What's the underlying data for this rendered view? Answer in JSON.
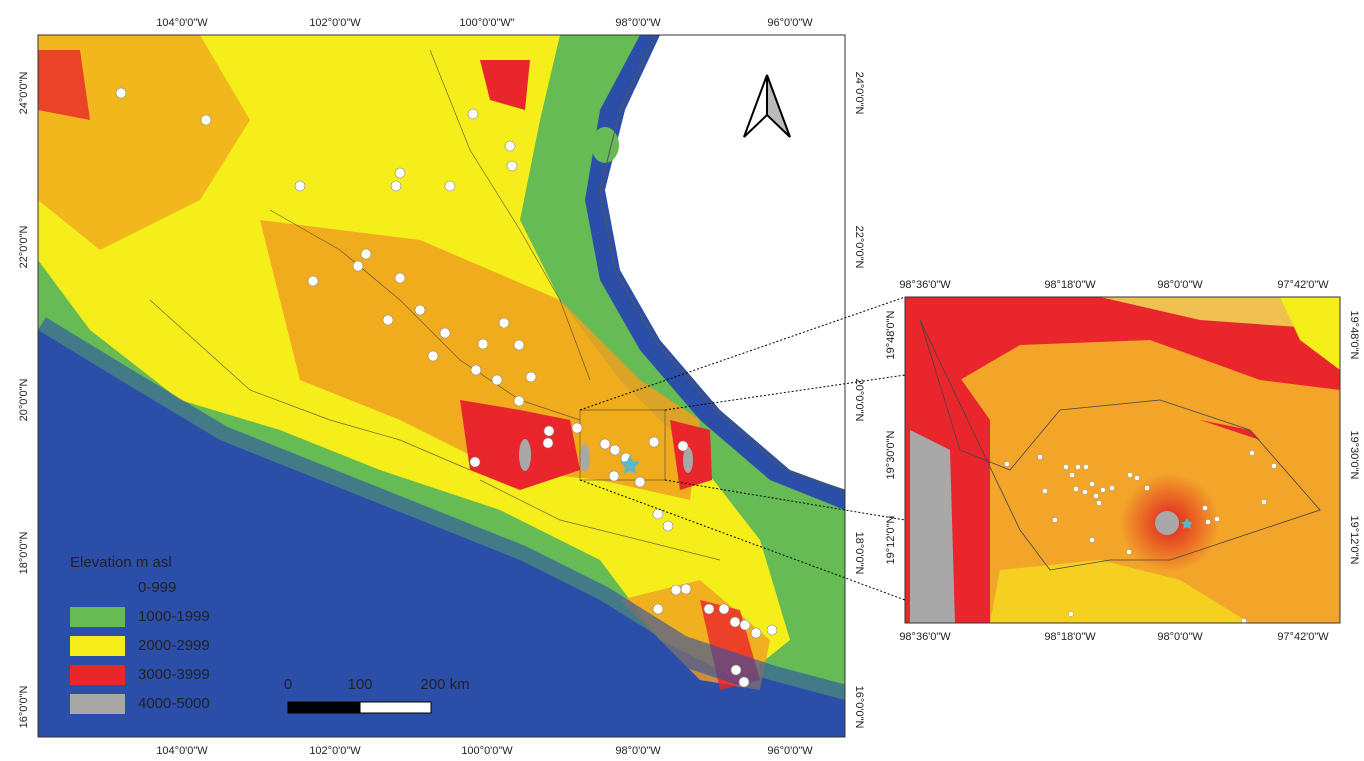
{
  "main_map": {
    "top_labels": [
      "104°0'0\"W",
      "102°0'0\"W",
      "100°0'0\"W\"",
      "98°0'0\"W",
      "96°0'0\"W"
    ],
    "bottom_labels": [
      "104°0'0\"W",
      "102°0'0\"W",
      "100°0'0\"W",
      "98°0'0\"W",
      "96°0'0\"W"
    ],
    "left_labels": [
      "24°0'0\"N",
      "22°0'0\"N",
      "20°0'0\"N",
      "18°0'0\"N",
      "16°0'0\"N"
    ],
    "right_labels": [
      "24°0'0\"N",
      "22°0'0\"N",
      "20°0'0\"N",
      "18°0'0\"N",
      "16°0'0\"N"
    ]
  },
  "legend": {
    "title": "Elevation m asl",
    "items": [
      {
        "label": "0-999",
        "color": "#2b4ea8"
      },
      {
        "label": "1000-1999",
        "color": "#66bb55"
      },
      {
        "label": "2000-2999",
        "color": "#f5ee1a"
      },
      {
        "label": "3000-3999",
        "color": "#e8262b"
      },
      {
        "label": "4000-5000",
        "color": "#a8a8a8"
      }
    ]
  },
  "scale_bar": {
    "labels": [
      "0",
      "100",
      "200 km"
    ]
  },
  "inset_map": {
    "top_labels": [
      "98°36'0\"W",
      "98°18'0\"W",
      "98°0'0\"W",
      "97°42'0\"W"
    ],
    "bottom_labels": [
      "98°36'0\"W",
      "98°18'0\"W",
      "98°0'0\"W",
      "97°42'0\"W"
    ],
    "left_labels": [
      "19°48'0\"N",
      "19°30'0\"N",
      "19°12'0\"N"
    ],
    "right_labels": [
      "19°48'0\"N",
      "19°30'0\"N",
      "19°12'0\"N"
    ]
  }
}
